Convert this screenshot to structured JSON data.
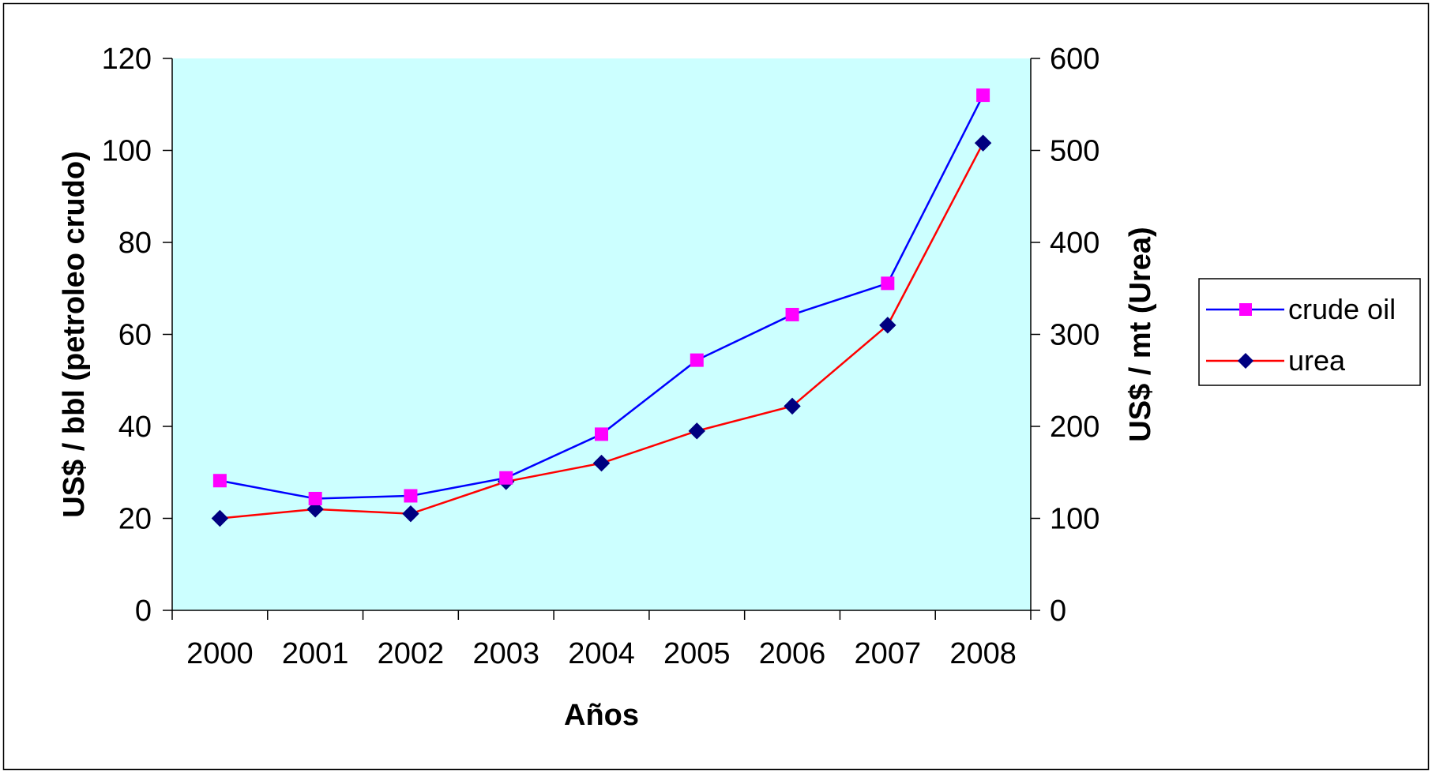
{
  "chart_data": {
    "type": "line",
    "categories": [
      "2000",
      "2001",
      "2002",
      "2003",
      "2004",
      "2005",
      "2006",
      "2007",
      "2008"
    ],
    "xlabel": "Años",
    "ylabel_left": "US$ / bbl (petroleo crudo)",
    "ylabel_right": "US$ / mt (Urea)",
    "ylim_left": [
      0,
      120
    ],
    "ylim_right": [
      0,
      600
    ],
    "yticks_left": [
      "0",
      "20",
      "40",
      "60",
      "80",
      "100",
      "120"
    ],
    "yticks_right": [
      "0",
      "100",
      "200",
      "300",
      "400",
      "500",
      "600"
    ],
    "grid": false,
    "plot_background": "#ccffff",
    "legend_position": "right",
    "series": [
      {
        "name": "crude oil",
        "axis": "left",
        "values": [
          28.2,
          24.3,
          24.9,
          28.8,
          38.3,
          54.4,
          64.3,
          71.1,
          112.0
        ],
        "line_color": "#0000ff",
        "marker": "square",
        "marker_color": "#ff00ff"
      },
      {
        "name": "urea",
        "axis": "right",
        "values": [
          100,
          110,
          105,
          140,
          160,
          195,
          222,
          310,
          508
        ],
        "line_color": "#ff0000",
        "marker": "diamond",
        "marker_color": "#000080"
      }
    ]
  }
}
